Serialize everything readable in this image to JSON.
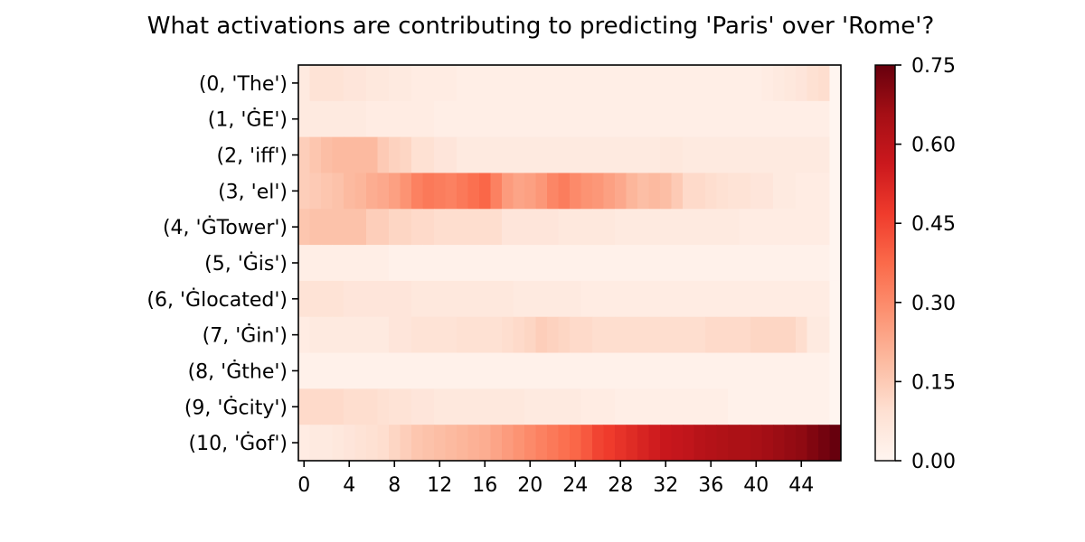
{
  "chart_data": {
    "type": "heatmap",
    "title": "What activations are contributing to predicting 'Paris' over 'Rome'?",
    "xlabel": "",
    "ylabel": "",
    "row_labels": [
      "(0, 'The')",
      "(1, 'ĠE')",
      "(2, 'iff')",
      "(3, 'el')",
      "(4, 'ĠTower')",
      "(5, 'Ġis')",
      "(6, 'Ġlocated')",
      "(7, 'Ġin')",
      "(8, 'Ġthe')",
      "(9, 'Ġcity')",
      "(10, 'Ġof')"
    ],
    "x_ticks": [
      0,
      4,
      8,
      12,
      16,
      20,
      24,
      28,
      32,
      36,
      40,
      44
    ],
    "n_cols": 48,
    "colormap": "Reds",
    "vmin": 0.0,
    "vmax": 0.75,
    "colorbar_ticks": [
      "0.00",
      "0.15",
      "0.30",
      "0.45",
      "0.60",
      "0.75"
    ],
    "values": [
      [
        0.05,
        0.08,
        0.08,
        0.08,
        0.07,
        0.07,
        0.06,
        0.06,
        0.05,
        0.05,
        0.04,
        0.04,
        0.04,
        0.04,
        0.03,
        0.03,
        0.03,
        0.03,
        0.03,
        0.03,
        0.03,
        0.03,
        0.03,
        0.03,
        0.03,
        0.03,
        0.03,
        0.03,
        0.03,
        0.03,
        0.03,
        0.03,
        0.03,
        0.03,
        0.03,
        0.03,
        0.03,
        0.03,
        0.03,
        0.03,
        0.03,
        0.04,
        0.05,
        0.06,
        0.07,
        0.09,
        0.1,
        0.0
      ],
      [
        0.05,
        0.05,
        0.05,
        0.05,
        0.05,
        0.05,
        0.04,
        0.04,
        0.04,
        0.04,
        0.04,
        0.04,
        0.03,
        0.03,
        0.03,
        0.03,
        0.03,
        0.03,
        0.03,
        0.03,
        0.03,
        0.03,
        0.03,
        0.03,
        0.03,
        0.03,
        0.03,
        0.03,
        0.03,
        0.03,
        0.03,
        0.03,
        0.03,
        0.03,
        0.03,
        0.03,
        0.03,
        0.03,
        0.03,
        0.03,
        0.03,
        0.03,
        0.03,
        0.03,
        0.03,
        0.03,
        0.03,
        0.0
      ],
      [
        0.14,
        0.16,
        0.18,
        0.19,
        0.19,
        0.19,
        0.19,
        0.15,
        0.13,
        0.12,
        0.09,
        0.09,
        0.07,
        0.07,
        0.05,
        0.05,
        0.05,
        0.05,
        0.05,
        0.05,
        0.05,
        0.05,
        0.05,
        0.05,
        0.05,
        0.05,
        0.05,
        0.05,
        0.05,
        0.05,
        0.05,
        0.05,
        0.06,
        0.06,
        0.05,
        0.05,
        0.05,
        0.05,
        0.05,
        0.05,
        0.05,
        0.05,
        0.05,
        0.05,
        0.05,
        0.05,
        0.05,
        0.0
      ],
      [
        0.14,
        0.15,
        0.16,
        0.17,
        0.19,
        0.2,
        0.22,
        0.23,
        0.25,
        0.28,
        0.32,
        0.34,
        0.33,
        0.32,
        0.34,
        0.36,
        0.38,
        0.32,
        0.26,
        0.24,
        0.25,
        0.27,
        0.31,
        0.33,
        0.3,
        0.28,
        0.27,
        0.25,
        0.23,
        0.2,
        0.18,
        0.19,
        0.18,
        0.15,
        0.11,
        0.11,
        0.1,
        0.09,
        0.08,
        0.08,
        0.07,
        0.07,
        0.05,
        0.05,
        0.04,
        0.04,
        0.04,
        0.0
      ],
      [
        0.16,
        0.17,
        0.17,
        0.17,
        0.17,
        0.17,
        0.14,
        0.14,
        0.12,
        0.12,
        0.11,
        0.11,
        0.1,
        0.1,
        0.1,
        0.1,
        0.1,
        0.1,
        0.07,
        0.07,
        0.07,
        0.07,
        0.07,
        0.06,
        0.06,
        0.06,
        0.06,
        0.06,
        0.05,
        0.05,
        0.05,
        0.05,
        0.05,
        0.05,
        0.05,
        0.05,
        0.05,
        0.05,
        0.05,
        0.04,
        0.04,
        0.04,
        0.04,
        0.04,
        0.04,
        0.04,
        0.04,
        0.0
      ],
      [
        0.03,
        0.03,
        0.03,
        0.03,
        0.03,
        0.03,
        0.03,
        0.03,
        0.02,
        0.02,
        0.02,
        0.02,
        0.02,
        0.02,
        0.02,
        0.02,
        0.02,
        0.02,
        0.02,
        0.02,
        0.02,
        0.02,
        0.02,
        0.02,
        0.02,
        0.02,
        0.02,
        0.02,
        0.02,
        0.02,
        0.02,
        0.02,
        0.02,
        0.02,
        0.02,
        0.02,
        0.02,
        0.02,
        0.02,
        0.02,
        0.02,
        0.02,
        0.02,
        0.02,
        0.02,
        0.02,
        0.02,
        0.0
      ],
      [
        0.08,
        0.08,
        0.08,
        0.08,
        0.07,
        0.07,
        0.07,
        0.07,
        0.07,
        0.07,
        0.06,
        0.06,
        0.06,
        0.06,
        0.06,
        0.06,
        0.06,
        0.06,
        0.06,
        0.05,
        0.05,
        0.05,
        0.05,
        0.05,
        0.05,
        0.04,
        0.04,
        0.04,
        0.04,
        0.04,
        0.04,
        0.04,
        0.04,
        0.04,
        0.04,
        0.04,
        0.04,
        0.04,
        0.04,
        0.04,
        0.04,
        0.04,
        0.04,
        0.04,
        0.04,
        0.04,
        0.04,
        0.0
      ],
      [
        0.04,
        0.05,
        0.05,
        0.05,
        0.05,
        0.05,
        0.05,
        0.05,
        0.07,
        0.07,
        0.08,
        0.08,
        0.08,
        0.08,
        0.09,
        0.09,
        0.09,
        0.09,
        0.1,
        0.11,
        0.12,
        0.14,
        0.13,
        0.12,
        0.11,
        0.11,
        0.1,
        0.1,
        0.1,
        0.1,
        0.1,
        0.1,
        0.1,
        0.1,
        0.1,
        0.1,
        0.11,
        0.11,
        0.11,
        0.11,
        0.12,
        0.12,
        0.12,
        0.12,
        0.1,
        0.05,
        0.05,
        0.0
      ],
      [
        0.02,
        0.02,
        0.02,
        0.02,
        0.02,
        0.02,
        0.02,
        0.02,
        0.02,
        0.02,
        0.02,
        0.02,
        0.02,
        0.02,
        0.02,
        0.02,
        0.02,
        0.02,
        0.02,
        0.02,
        0.02,
        0.02,
        0.02,
        0.02,
        0.02,
        0.02,
        0.02,
        0.02,
        0.02,
        0.02,
        0.02,
        0.02,
        0.02,
        0.02,
        0.02,
        0.02,
        0.02,
        0.02,
        0.02,
        0.02,
        0.02,
        0.02,
        0.02,
        0.02,
        0.02,
        0.02,
        0.02,
        0.0
      ],
      [
        0.11,
        0.11,
        0.11,
        0.11,
        0.1,
        0.1,
        0.1,
        0.09,
        0.08,
        0.08,
        0.07,
        0.07,
        0.06,
        0.06,
        0.06,
        0.06,
        0.06,
        0.06,
        0.06,
        0.06,
        0.05,
        0.05,
        0.05,
        0.05,
        0.05,
        0.04,
        0.04,
        0.04,
        0.03,
        0.03,
        0.03,
        0.03,
        0.03,
        0.03,
        0.03,
        0.03,
        0.03,
        0.03,
        0.02,
        0.02,
        0.02,
        0.02,
        0.02,
        0.02,
        0.02,
        0.02,
        0.02,
        0.0
      ],
      [
        0.04,
        0.05,
        0.05,
        0.06,
        0.07,
        0.08,
        0.09,
        0.1,
        0.12,
        0.14,
        0.16,
        0.17,
        0.18,
        0.19,
        0.2,
        0.21,
        0.22,
        0.24,
        0.26,
        0.28,
        0.3,
        0.32,
        0.34,
        0.36,
        0.38,
        0.41,
        0.45,
        0.47,
        0.49,
        0.51,
        0.53,
        0.55,
        0.57,
        0.58,
        0.59,
        0.61,
        0.62,
        0.63,
        0.64,
        0.64,
        0.65,
        0.66,
        0.67,
        0.68,
        0.69,
        0.71,
        0.73,
        0.75
      ]
    ]
  }
}
